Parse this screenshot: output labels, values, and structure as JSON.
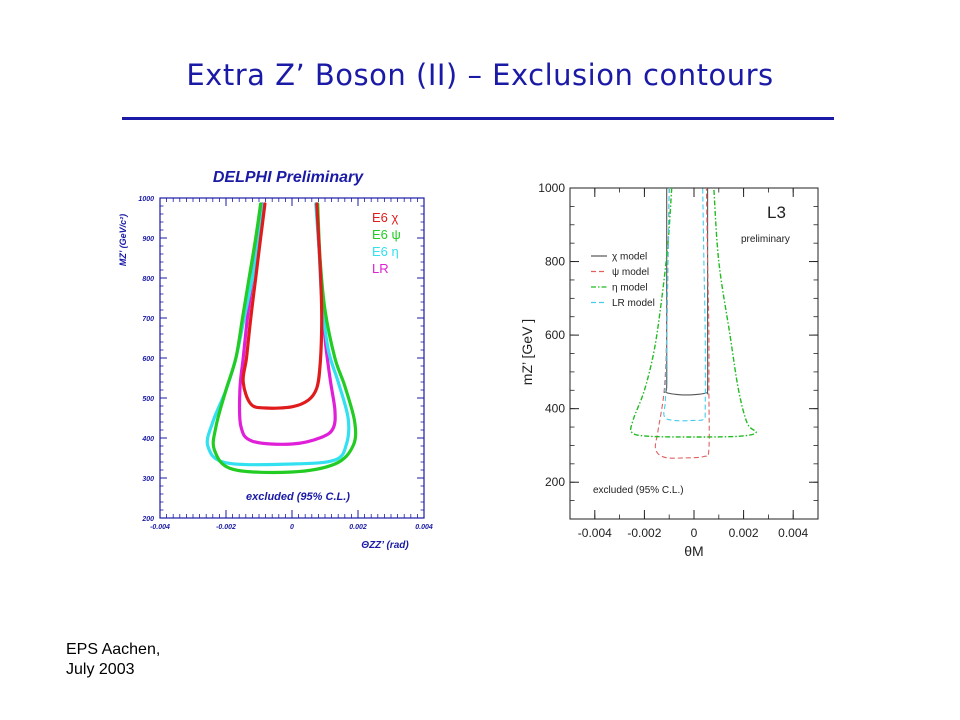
{
  "slide": {
    "title": "Extra Z’ Boson (II) – Exclusion contours",
    "footer_line1": "EPS Aachen,",
    "footer_line2": "July 2003"
  },
  "colors": {
    "title": "#1a1aa6",
    "delphi_axis": "#1a1aa6",
    "chi": "#e01b1b",
    "psi": "#22cc22",
    "eta": "#33e0f0",
    "lr": "#e020d8",
    "l3_chi": "#555555",
    "l3_psi": "#e06060",
    "l3_eta": "#22bb22",
    "l3_lr": "#44ccee"
  },
  "chart_data": [
    {
      "type": "line",
      "title": "DELPHI Preliminary",
      "xlabel": "ΘZZ’ (rad)",
      "ylabel": "MZ’ (GeV/c²)",
      "xlim": [
        -0.004,
        0.004
      ],
      "ylim": [
        200,
        1000
      ],
      "x_ticks": [
        "-0.004",
        "-0.002",
        "0",
        "0.002",
        "0.004"
      ],
      "y_ticks": [
        "200",
        "300",
        "400",
        "500",
        "600",
        "700",
        "800",
        "900",
        "1000"
      ],
      "annotation": "excluded (95% C.L.)",
      "legend_position": "top-right",
      "series": [
        {
          "name": "E6 χ",
          "color": "#e01b1b",
          "points": [
            [
              -0.00082,
              985
            ],
            [
              -0.00095,
              900
            ],
            [
              -0.0011,
              800
            ],
            [
              -0.00125,
              700
            ],
            [
              -0.00138,
              600
            ],
            [
              -0.00148,
              540
            ],
            [
              -0.00125,
              485
            ],
            [
              -0.0008,
              475
            ],
            [
              0.0,
              478
            ],
            [
              0.0005,
              495
            ],
            [
              0.00075,
              525
            ],
            [
              0.00085,
              580
            ],
            [
              0.0009,
              680
            ],
            [
              0.00088,
              780
            ],
            [
              0.00082,
              880
            ],
            [
              0.00075,
              985
            ]
          ]
        },
        {
          "name": "E6 ψ",
          "color": "#22cc22",
          "points": [
            [
              -0.00095,
              985
            ],
            [
              -0.0011,
              900
            ],
            [
              -0.0013,
              800
            ],
            [
              -0.0015,
              700
            ],
            [
              -0.0017,
              600
            ],
            [
              -0.002,
              520
            ],
            [
              -0.0023,
              430
            ],
            [
              -0.00235,
              370
            ],
            [
              -0.0018,
              322
            ],
            [
              0.0,
              315
            ],
            [
              0.0013,
              335
            ],
            [
              0.00185,
              380
            ],
            [
              0.0019,
              440
            ],
            [
              0.0016,
              530
            ],
            [
              0.0013,
              600
            ],
            [
              0.001,
              720
            ],
            [
              0.00085,
              850
            ],
            [
              0.00078,
              985
            ]
          ]
        },
        {
          "name": "E6 η",
          "color": "#33e0f0",
          "points": [
            [
              -0.00085,
              985
            ],
            [
              -0.001,
              900
            ],
            [
              -0.0012,
              800
            ],
            [
              -0.00145,
              700
            ],
            [
              -0.0017,
              600
            ],
            [
              -0.002,
              520
            ],
            [
              -0.0024,
              440
            ],
            [
              -0.00255,
              380
            ],
            [
              -0.002,
              338
            ],
            [
              0.0,
              335
            ],
            [
              0.0013,
              345
            ],
            [
              0.00165,
              385
            ],
            [
              0.0017,
              450
            ],
            [
              0.0014,
              540
            ],
            [
              0.0011,
              620
            ],
            [
              0.0009,
              750
            ],
            [
              0.00082,
              870
            ],
            [
              0.00072,
              985
            ]
          ]
        },
        {
          "name": "LR",
          "color": "#e020d8",
          "points": [
            [
              -0.0009,
              985
            ],
            [
              -0.00105,
              900
            ],
            [
              -0.0012,
              800
            ],
            [
              -0.00135,
              700
            ],
            [
              -0.00148,
              600
            ],
            [
              -0.00158,
              520
            ],
            [
              -0.00155,
              430
            ],
            [
              -0.0012,
              392
            ],
            [
              0.0,
              385
            ],
            [
              0.0009,
              402
            ],
            [
              0.00125,
              425
            ],
            [
              0.0013,
              470
            ],
            [
              0.00115,
              550
            ],
            [
              0.001,
              650
            ],
            [
              0.0009,
              780
            ],
            [
              0.0008,
              900
            ],
            [
              0.00075,
              985
            ]
          ]
        }
      ]
    },
    {
      "type": "line",
      "title": "L3",
      "subtitle": "preliminary",
      "xlabel": "θM",
      "ylabel": "mZ’ [GeV ]",
      "xlim": [
        -0.005,
        0.005
      ],
      "ylim": [
        100,
        1000
      ],
      "x_ticks": [
        "-0.004",
        "-0.002",
        "0",
        "0.002",
        "0.004"
      ],
      "y_ticks": [
        "200",
        "400",
        "600",
        "800",
        "1000"
      ],
      "annotation": "excluded (95% C.L.)",
      "legend_position": "left",
      "series": [
        {
          "name": "χ model",
          "color": "#555555",
          "dash": "solid",
          "points": [
            [
              -0.0011,
              1000
            ],
            [
              -0.0011,
              800
            ],
            [
              -0.0011,
              600
            ],
            [
              -0.0011,
              460
            ],
            [
              -0.00115,
              445
            ],
            [
              -0.0006,
              438
            ],
            [
              0.0,
              438
            ],
            [
              0.0005,
              443
            ],
            [
              0.00055,
              455
            ],
            [
              0.00055,
              600
            ],
            [
              0.00055,
              800
            ],
            [
              0.00055,
              1000
            ]
          ]
        },
        {
          "name": "ψ model",
          "color": "#e06060",
          "dash": "dashed",
          "points": [
            [
              -0.001,
              1000
            ],
            [
              -0.00105,
              800
            ],
            [
              -0.0011,
              600
            ],
            [
              -0.0012,
              450
            ],
            [
              -0.00145,
              340
            ],
            [
              -0.00155,
              290
            ],
            [
              -0.0012,
              268
            ],
            [
              -0.0004,
              266
            ],
            [
              0.0004,
              270
            ],
            [
              0.0006,
              290
            ],
            [
              0.0006,
              450
            ],
            [
              0.0006,
              600
            ],
            [
              0.00055,
              800
            ],
            [
              0.0005,
              1000
            ]
          ]
        },
        {
          "name": "η model",
          "color": "#22bb22",
          "dash": "dashdot",
          "points": [
            [
              -0.0009,
              1000
            ],
            [
              -0.00105,
              850
            ],
            [
              -0.0013,
              700
            ],
            [
              -0.0016,
              560
            ],
            [
              -0.002,
              450
            ],
            [
              -0.00245,
              370
            ],
            [
              -0.0025,
              335
            ],
            [
              -0.0018,
              325
            ],
            [
              0.0,
              323
            ],
            [
              0.0018,
              325
            ],
            [
              0.0025,
              335
            ],
            [
              0.00215,
              360
            ],
            [
              0.0018,
              450
            ],
            [
              0.00145,
              600
            ],
            [
              0.001,
              800
            ],
            [
              0.0008,
              1000
            ]
          ]
        },
        {
          "name": "LR model",
          "color": "#44ccee",
          "dash": "dashed",
          "points": [
            [
              -0.001,
              1000
            ],
            [
              -0.00105,
              800
            ],
            [
              -0.0011,
              600
            ],
            [
              -0.00115,
              430
            ],
            [
              -0.0012,
              380
            ],
            [
              -0.0008,
              368
            ],
            [
              0.0,
              368
            ],
            [
              0.0004,
              372
            ],
            [
              0.00045,
              400
            ],
            [
              0.00045,
              600
            ],
            [
              0.0004,
              800
            ],
            [
              0.00035,
              1000
            ]
          ]
        }
      ]
    }
  ]
}
